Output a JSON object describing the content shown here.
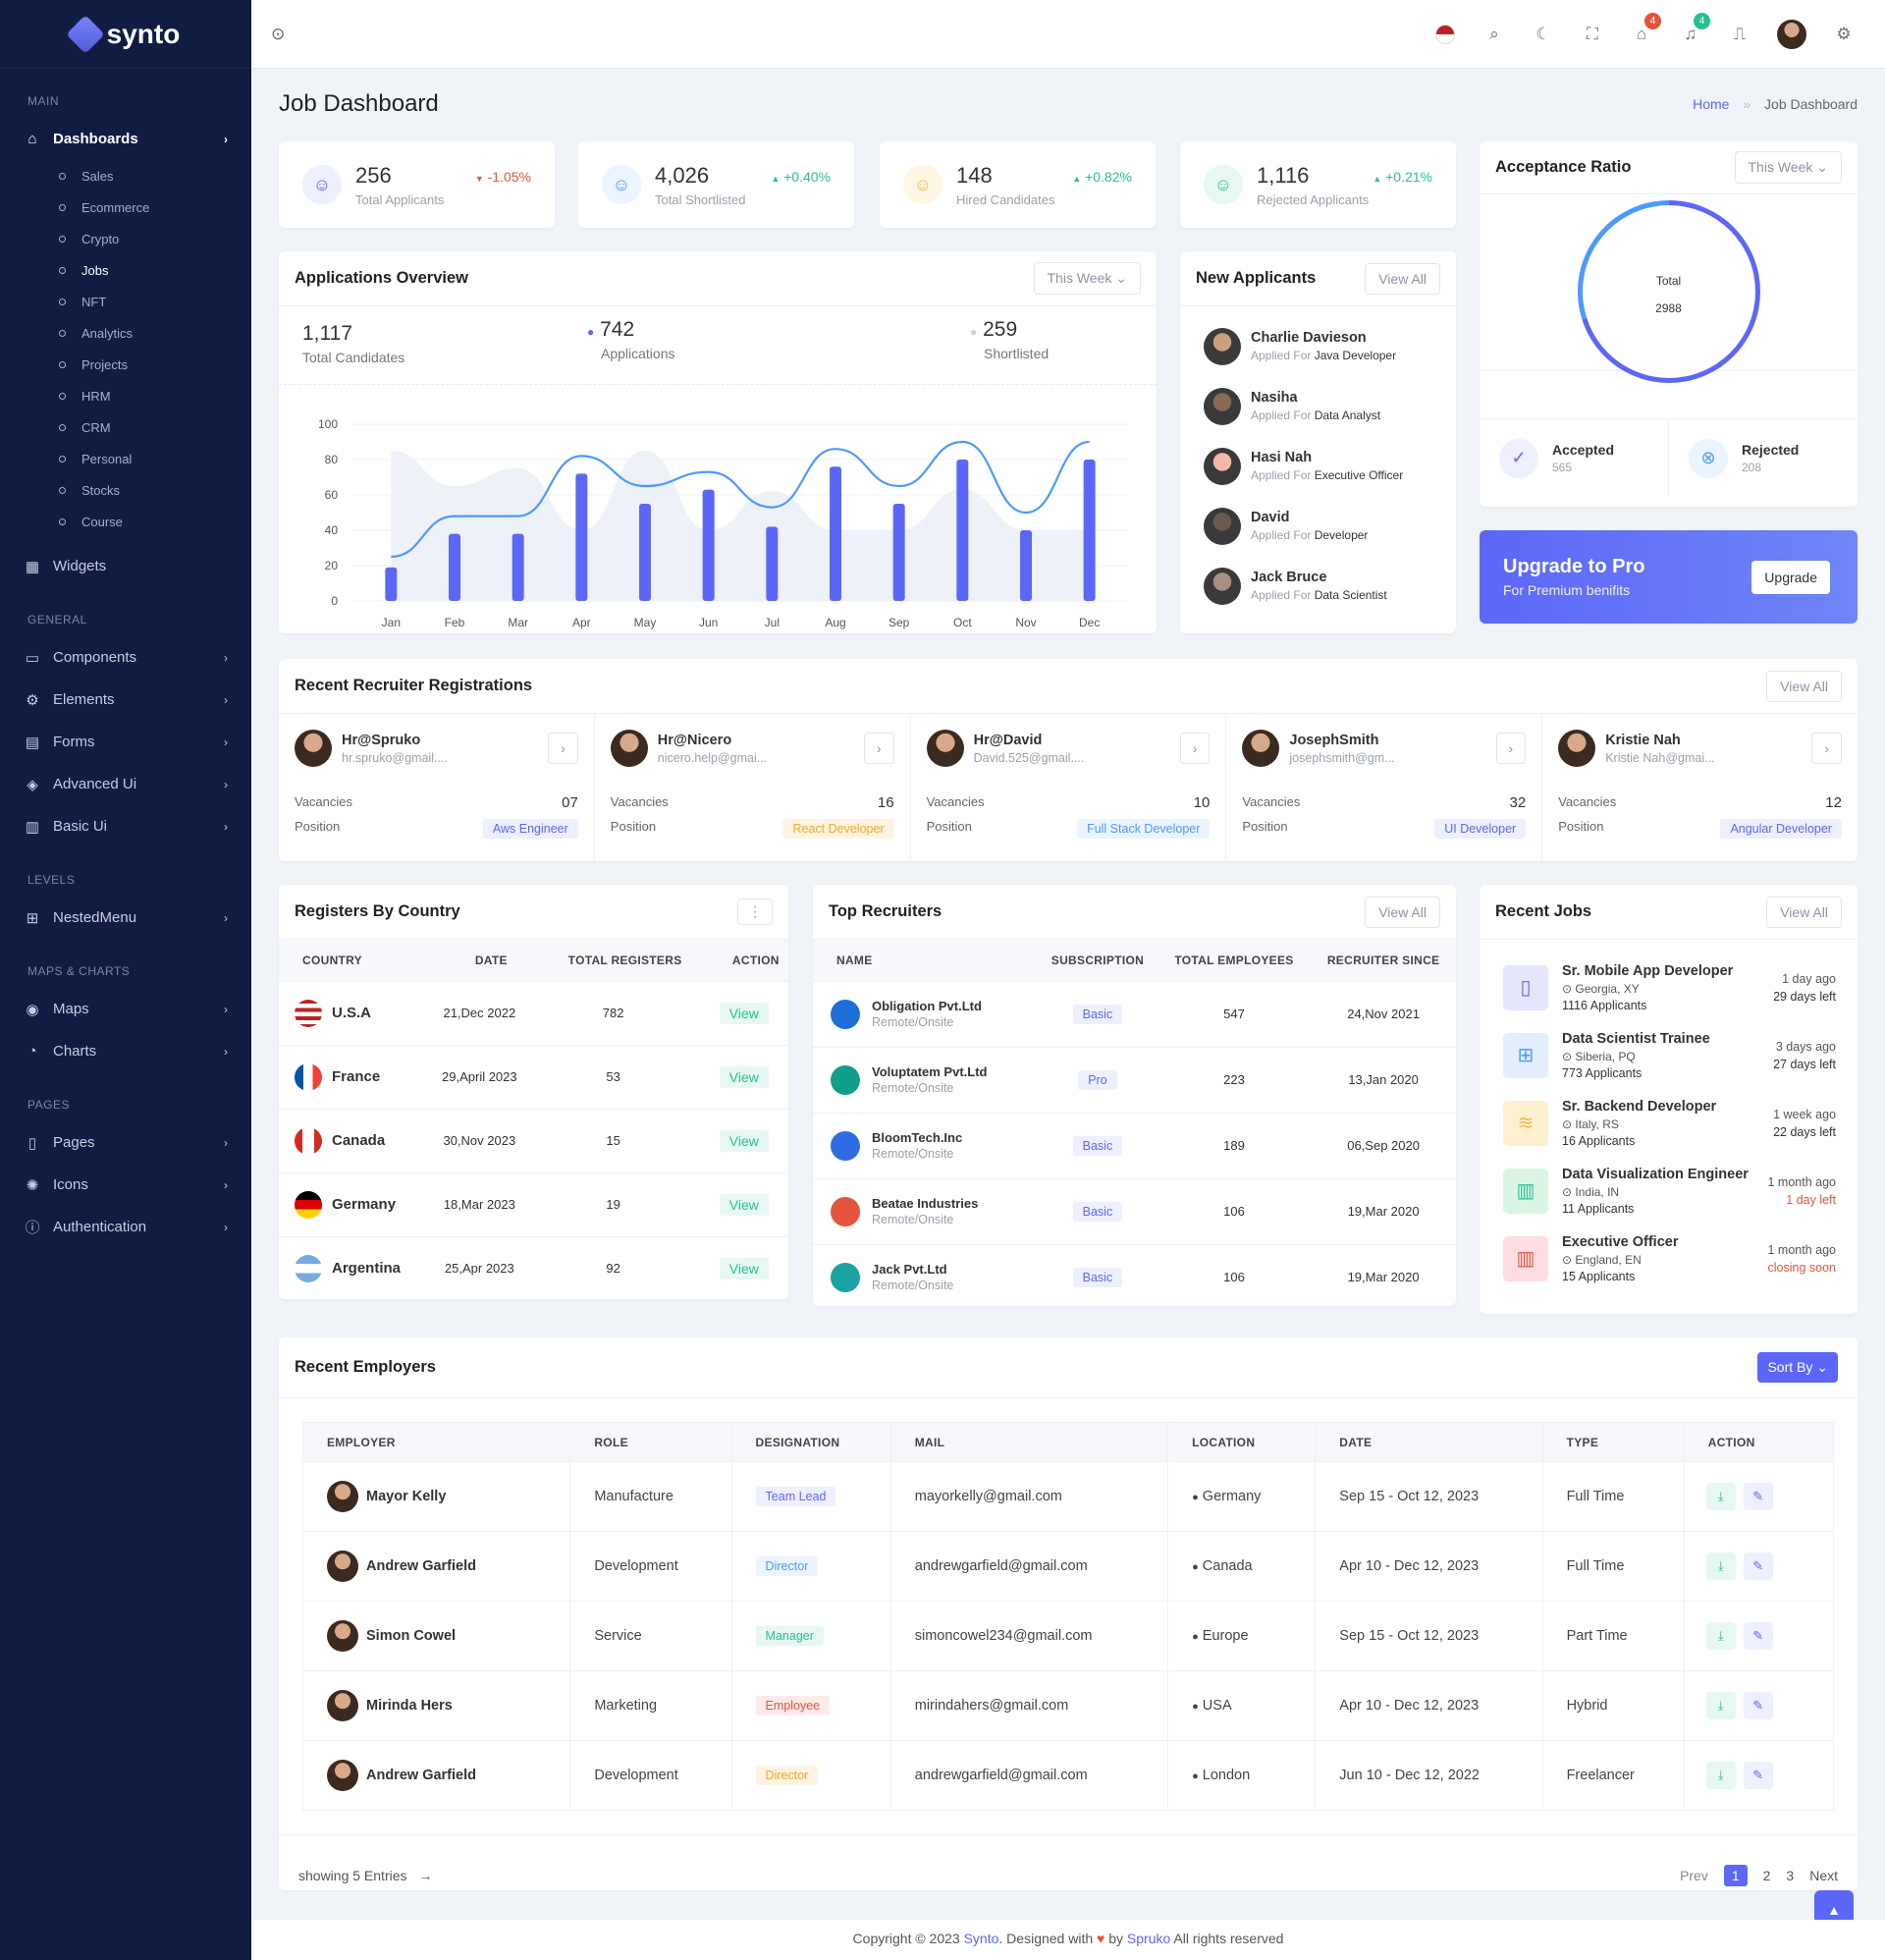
{
  "brand": "synto",
  "sidebar": {
    "sections": {
      "main": "MAIN",
      "general": "GENERAL",
      "levels": "LEVELS",
      "maps": "MAPS & CHARTS",
      "pages": "PAGES"
    },
    "dashboards": "Dashboards",
    "sub": [
      "Sales",
      "Ecommerce",
      "Crypto",
      "Jobs",
      "NFT",
      "Analytics",
      "Projects",
      "HRM",
      "CRM",
      "Personal",
      "Stocks",
      "Course"
    ],
    "widgets": "Widgets",
    "general": [
      "Components",
      "Elements",
      "Forms",
      "Advanced Ui",
      "Basic Ui"
    ],
    "nested": "NestedMenu",
    "maps": [
      "Maps",
      "Charts"
    ],
    "pages": [
      "Pages",
      "Icons",
      "Authentication"
    ]
  },
  "header": {
    "cart_count": "4",
    "notif_count": "4"
  },
  "page": {
    "title": "Job Dashboard",
    "crumb_home": "Home",
    "crumb_current": "Job Dashboard"
  },
  "stats": [
    {
      "value": "256",
      "label": "Total Applicants",
      "change": "-1.05%",
      "dir": "down",
      "color": "#5c67f7",
      "bg": "#eeefff",
      "icon": "users-icon"
    },
    {
      "value": "4,026",
      "label": "Total Shortlisted",
      "change": "+0.40%",
      "dir": "up",
      "color": "#4c9aff",
      "bg": "#ebf4ff",
      "icon": "user-icon"
    },
    {
      "value": "148",
      "label": "Hired Candidates",
      "change": "+0.82%",
      "dir": "up",
      "color": "#f5b849",
      "bg": "#fff6e3",
      "icon": "user-check-icon"
    },
    {
      "value": "1,116",
      "label": "Rejected Applicants",
      "change": "+0.21%",
      "dir": "up",
      "color": "#26bf94",
      "bg": "#e6f8f1",
      "icon": "user-x-icon"
    }
  ],
  "overview": {
    "title": "Applications Overview",
    "filter": "This Week",
    "total": "1,117",
    "total_label": "Total Candidates",
    "apps": "742",
    "apps_label": "Applications",
    "short": "259",
    "short_label": "Shortlisted"
  },
  "chart_data": {
    "type": "bar",
    "categories": [
      "Jan",
      "Feb",
      "Mar",
      "Apr",
      "May",
      "Jun",
      "Jul",
      "Aug",
      "Sep",
      "Oct",
      "Nov",
      "Dec"
    ],
    "ylim": [
      0,
      100
    ],
    "yticks": [
      0,
      20,
      40,
      60,
      80,
      100
    ],
    "grid": true,
    "series": [
      {
        "type": "bar",
        "values": [
          19,
          38,
          38,
          72,
          55,
          63,
          42,
          76,
          55,
          80,
          40,
          80
        ],
        "color": "#5c67f7"
      },
      {
        "type": "line",
        "values": [
          25,
          48,
          48,
          82,
          65,
          73,
          53,
          86,
          65,
          90,
          50,
          90
        ],
        "color": "#4c9aff"
      },
      {
        "type": "area",
        "values": [
          85,
          65,
          75,
          40,
          85,
          40,
          62,
          40,
          40,
          63,
          40,
          40
        ],
        "color": "#eef1f7"
      }
    ]
  },
  "new_applicants": {
    "title": "New Applicants",
    "view_all": "View All",
    "applied_for": "Applied For",
    "items": [
      {
        "name": "Charlie Davieson",
        "role": "Java Developer"
      },
      {
        "name": "Nasiha",
        "role": "Data Analyst"
      },
      {
        "name": "Hasi Nah",
        "role": "Executive Officer"
      },
      {
        "name": "David",
        "role": "Developer"
      },
      {
        "name": "Jack Bruce",
        "role": "Data Scientist"
      }
    ]
  },
  "acceptance": {
    "title": "Acceptance Ratio",
    "filter": "This Week",
    "total_label": "Total",
    "total": "2988",
    "accepted_label": "Accepted",
    "accepted": "565",
    "rejected_label": "Rejected",
    "rejected": "208"
  },
  "upgrade": {
    "title": "Upgrade to Pro",
    "subtitle": "For Premium benifits",
    "button": "Upgrade"
  },
  "recruiters": {
    "title": "Recent Recruiter Registrations",
    "view_all": "View All",
    "vac_label": "Vacancies",
    "pos_label": "Position",
    "items": [
      {
        "name": "Hr@Spruko",
        "email": "hr.spruko@gmail....",
        "vacancies": "07",
        "position": "Aws Engineer",
        "color": "#5c67f7",
        "bg": "#eeefff"
      },
      {
        "name": "Hr@Nicero",
        "email": "nicero.help@gmai...",
        "vacancies": "16",
        "position": "React Developer",
        "color": "#f5a623",
        "bg": "#fff4e3"
      },
      {
        "name": "Hr@David",
        "email": "David.525@gmail....",
        "vacancies": "10",
        "position": "Full Stack Developer",
        "color": "#4c9aff",
        "bg": "#ebf4ff"
      },
      {
        "name": "JosephSmith",
        "email": "josephsmith@gm...",
        "vacancies": "32",
        "position": "UI Developer",
        "color": "#5c67f7",
        "bg": "#eeefff"
      },
      {
        "name": "Kristie Nah",
        "email": "Kristie Nah@gmai...",
        "vacancies": "12",
        "position": "Angular Developer",
        "color": "#5c67f7",
        "bg": "#eeefff"
      }
    ]
  },
  "countries": {
    "title": "Registers By Country",
    "headers": [
      "COUNTRY",
      "DATE",
      "TOTAL REGISTERS",
      "ACTION"
    ],
    "view": "View",
    "rows": [
      {
        "country": "U.S.A",
        "date": "21,Dec 2022",
        "total": "782"
      },
      {
        "country": "France",
        "date": "29,April 2023",
        "total": "53"
      },
      {
        "country": "Canada",
        "date": "30,Nov 2023",
        "total": "15"
      },
      {
        "country": "Germany",
        "date": "18,Mar 2023",
        "total": "19"
      },
      {
        "country": "Argentina",
        "date": "25,Apr 2023",
        "total": "92"
      }
    ]
  },
  "top_recruiters": {
    "title": "Top Recruiters",
    "view_all": "View All",
    "headers": [
      "NAME",
      "SUBSCRIPTION",
      "TOTAL EMPLOYEES",
      "RECRUITER SINCE"
    ],
    "rows": [
      {
        "name": "Obligation Pvt.Ltd",
        "type": "Remote/Onsite",
        "sub": "Basic",
        "emp": "547",
        "since": "24,Nov 2021",
        "color": "#1e6fd9"
      },
      {
        "name": "Voluptatem Pvt.Ltd",
        "type": "Remote/Onsite",
        "sub": "Pro",
        "emp": "223",
        "since": "13,Jan 2020",
        "color": "#119e88"
      },
      {
        "name": "BloomTech.Inc",
        "type": "Remote/Onsite",
        "sub": "Basic",
        "emp": "189",
        "since": "06,Sep 2020",
        "color": "#2f6be3"
      },
      {
        "name": "Beatae Industries",
        "type": "Remote/Onsite",
        "sub": "Basic",
        "emp": "106",
        "since": "19,Mar 2020",
        "color": "#e5533d"
      },
      {
        "name": "Jack Pvt.Ltd",
        "type": "Remote/Onsite",
        "sub": "Basic",
        "emp": "106",
        "since": "19,Mar 2020",
        "color": "#1aa3a3"
      }
    ]
  },
  "recent_jobs": {
    "title": "Recent Jobs",
    "view_all": "View All",
    "items": [
      {
        "title": "Sr. Mobile App Developer",
        "loc": "Georgia, XY",
        "apps": "1116 Applicants",
        "ago": "1 day ago",
        "left": "29 days left",
        "urgent": false,
        "color": "#5c67f7",
        "bg": "#e6e6ff"
      },
      {
        "title": "Data Scientist Trainee",
        "loc": "Siberia, PQ",
        "apps": "773 Applicants",
        "ago": "3 days ago",
        "left": "27 days left",
        "urgent": false,
        "color": "#4c9aff",
        "bg": "#e3efff"
      },
      {
        "title": "Sr. Backend Developer",
        "loc": "Italy, RS",
        "apps": "16 Applicants",
        "ago": "1 week ago",
        "left": "22 days left",
        "urgent": false,
        "color": "#f5b849",
        "bg": "#fff1cf"
      },
      {
        "title": "Data Visualization Engineer",
        "loc": "India, IN",
        "apps": "11 Applicants",
        "ago": "1 month ago",
        "left": "1 day left",
        "urgent": true,
        "color": "#26bf94",
        "bg": "#dbf5e5"
      },
      {
        "title": "Executive Officer",
        "loc": "England, EN",
        "apps": "15 Applicants",
        "ago": "1 month ago",
        "left": "closing soon",
        "urgent": true,
        "color": "#e6533c",
        "bg": "#ffdde3"
      }
    ]
  },
  "employers": {
    "title": "Recent Employers",
    "sort": "Sort By",
    "headers": [
      "EMPLOYER",
      "ROLE",
      "DESIGNATION",
      "MAIL",
      "LOCATION",
      "DATE",
      "TYPE",
      "ACTION"
    ],
    "rows": [
      {
        "name": "Mayor Kelly",
        "role": "Manufacture",
        "des": "Team Lead",
        "des_color": "#5c67f7",
        "des_bg": "#eeefff",
        "mail": "mayorkelly@gmail.com",
        "loc": "Germany",
        "date": "Sep 15 - Oct 12, 2023",
        "type": "Full Time"
      },
      {
        "name": "Andrew Garfield",
        "role": "Development",
        "des": "Director",
        "des_color": "#4c9aff",
        "des_bg": "#ebf4ff",
        "mail": "andrewgarfield@gmail.com",
        "loc": "Canada",
        "date": "Apr 10 - Dec 12, 2023",
        "type": "Full Time"
      },
      {
        "name": "Simon Cowel",
        "role": "Service",
        "des": "Manager",
        "des_color": "#26bf94",
        "des_bg": "#e6f8f1",
        "mail": "simoncowel234@gmail.com",
        "loc": "Europe",
        "date": "Sep 15 - Oct 12, 2023",
        "type": "Part Time"
      },
      {
        "name": "Mirinda Hers",
        "role": "Marketing",
        "des": "Employee",
        "des_color": "#e6533c",
        "des_bg": "#fdeaea",
        "mail": "mirindahers@gmail.com",
        "loc": "USA",
        "date": "Apr 10 - Dec 12, 2023",
        "type": "Hybrid"
      },
      {
        "name": "Andrew Garfield",
        "role": "Development",
        "des": "Director",
        "des_color": "#f5a623",
        "des_bg": "#fff4e3",
        "mail": "andrewgarfield@gmail.com",
        "loc": "London",
        "date": "Jun 10 - Dec 12, 2022",
        "type": "Freelancer"
      }
    ],
    "showing": "showing 5 Entries",
    "prev": "Prev",
    "pages": [
      "1",
      "2",
      "3"
    ],
    "next": "Next"
  },
  "footer": {
    "pre": "Copyright © 2023",
    "brand": "Synto",
    "mid": ". Designed with",
    "by": "by",
    "company": "Spruko",
    "post": "All rights reserved"
  },
  "colors": {
    "primary": "#5c67f7",
    "sidebar": "#111c43",
    "success": "#26bf94",
    "danger": "#e6533c"
  }
}
